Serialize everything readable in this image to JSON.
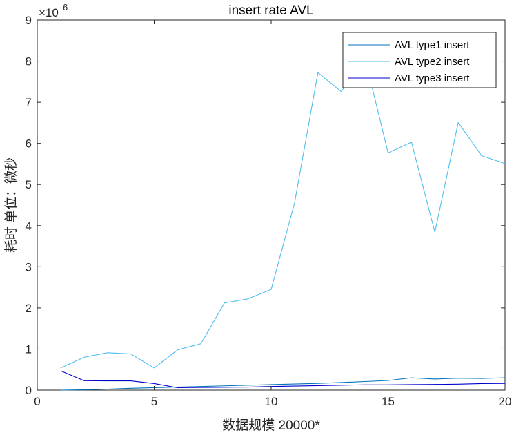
{
  "chart_data": {
    "type": "line",
    "title": "insert rate  AVL",
    "xlabel": "数据规模 20000*",
    "ylabel": "耗时 单位：微秒",
    "xlim": [
      0,
      20
    ],
    "ylim": [
      0,
      9000000
    ],
    "xticks": [
      0,
      5,
      10,
      15,
      20
    ],
    "xtick_labels": [
      "0",
      "5",
      "10",
      "15",
      "20"
    ],
    "yticks": [
      0,
      1000000,
      2000000,
      3000000,
      4000000,
      5000000,
      6000000,
      7000000,
      8000000,
      9000000
    ],
    "ytick_labels": [
      "0",
      "1",
      "2",
      "3",
      "4",
      "5",
      "6",
      "7",
      "8",
      "9"
    ],
    "y_exponent_base": "×10",
    "y_exponent_power": "6",
    "grid": false,
    "legend_position": "top-right",
    "x": [
      1,
      2,
      3,
      4,
      5,
      6,
      7,
      8,
      9,
      10,
      11,
      12,
      13,
      14,
      15,
      16,
      17,
      18,
      19,
      20
    ],
    "series": [
      {
        "name": "AVL type1 insert",
        "color": "#0072BD",
        "values": [
          0,
          10000,
          25000,
          45000,
          60000,
          75000,
          90000,
          105000,
          120000,
          135000,
          150000,
          165000,
          185000,
          210000,
          235000,
          300000,
          270000,
          290000,
          285000,
          300000
        ]
      },
      {
        "name": "AVL type2 insert",
        "color": "#4DBEEE",
        "values": [
          540000,
          800000,
          910000,
          880000,
          540000,
          980000,
          1130000,
          2120000,
          2220000,
          2450000,
          4550000,
          7720000,
          7260000,
          8100000,
          5770000,
          6030000,
          3840000,
          6510000,
          5700000,
          5510000
        ]
      },
      {
        "name": "AVL type3 insert",
        "color": "#0000CC",
        "values": [
          470000,
          230000,
          225000,
          225000,
          160000,
          60000,
          65000,
          70000,
          75000,
          90000,
          100000,
          110000,
          120000,
          130000,
          130000,
          135000,
          140000,
          145000,
          160000,
          165000
        ]
      }
    ]
  }
}
